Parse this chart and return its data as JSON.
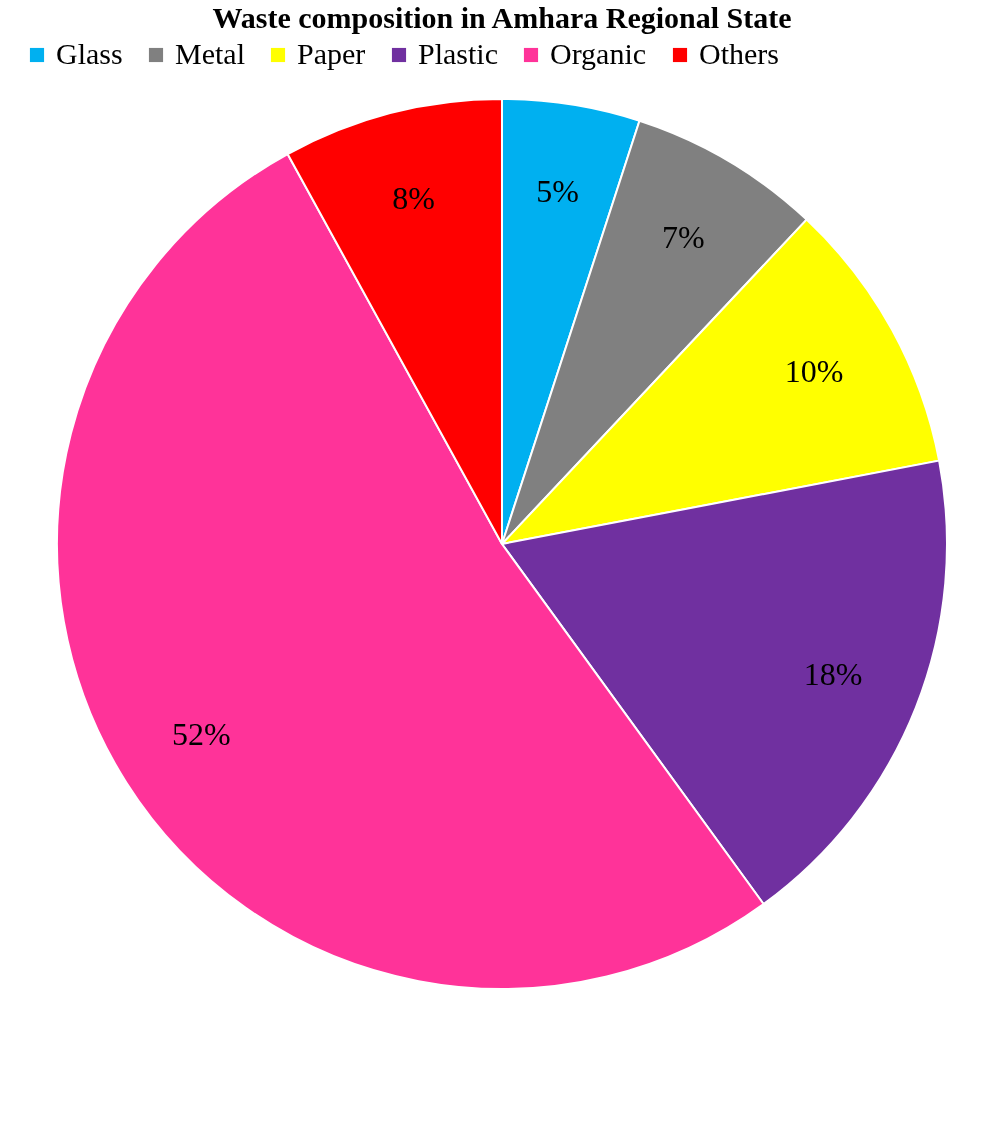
{
  "chart_data": {
    "type": "pie",
    "title": "Waste composition in Amhara Regional State",
    "categories": [
      "Glass",
      "Metal",
      "Paper",
      "Plastic",
      "Organic",
      "Others"
    ],
    "values": [
      5,
      7,
      10,
      18,
      52,
      8
    ],
    "colors": [
      "#00b0f0",
      "#808080",
      "#ffff00",
      "#7030a0",
      "#ff3399",
      "#ff0000"
    ],
    "value_labels": [
      "5%",
      "7%",
      "10%",
      "18%",
      "52%",
      "8%"
    ],
    "legend": "top"
  }
}
